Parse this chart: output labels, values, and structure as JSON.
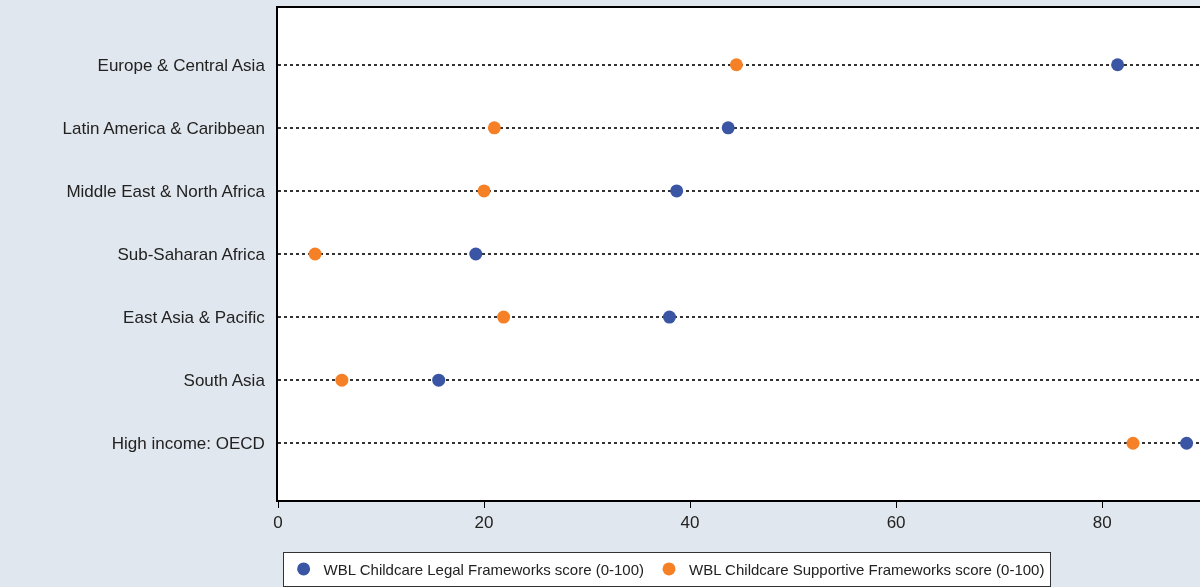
{
  "chart_data": {
    "type": "scatter",
    "categories": [
      "Europe & Central Asia",
      "Latin America & Caribbean",
      "Middle East & North Africa",
      "Sub-Saharan Africa",
      "East Asia & Pacific",
      "South Asia",
      "High income: OECD"
    ],
    "series": [
      {
        "name": "WBL Childcare Legal Frameworks score (0-100)",
        "color": "#3a55a4",
        "values": [
          81.5,
          43.7,
          38.7,
          19.2,
          38.0,
          15.6,
          88.2
        ]
      },
      {
        "name": "WBL Childcare Supportive Frameworks score (0-100)",
        "color": "#f58025",
        "values": [
          44.5,
          21.0,
          20.0,
          3.6,
          21.9,
          6.2,
          83.0
        ]
      }
    ],
    "orientation": "horizontal",
    "xlim": [
      0,
      89.5
    ],
    "xticks": [
      0,
      20,
      40,
      60,
      80
    ],
    "grid": "y",
    "legend": "bottom",
    "marker": "circle"
  }
}
